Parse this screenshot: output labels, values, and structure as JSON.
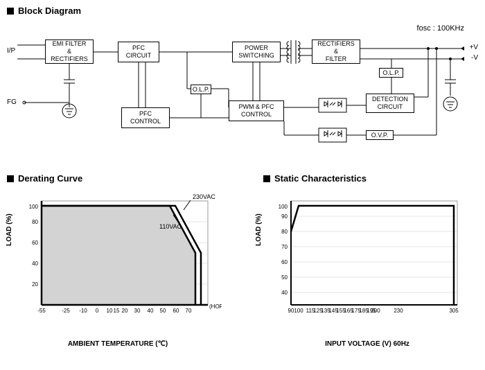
{
  "sections": {
    "block_diagram": "Block Diagram",
    "derating": "Derating Curve",
    "static": "Static Characteristics"
  },
  "fosc": "fosc : 100KHz",
  "blocks": {
    "emi": "EMI FILTER\n&\nRECTIFIERS",
    "pfc_circuit": "PFC\nCIRCUIT",
    "power_sw": "POWER\nSWITCHING",
    "rect_filter": "RECTIFIERS\n&\nFILTER",
    "pfc_control": "PFC\nCONTROL",
    "olp1": "O.L.P.",
    "pwm_pfc": "PWM & PFC\nCONTROL",
    "detection": "DETECTION\nCIRCUIT",
    "olp2": "O.L.P.",
    "ovp": "O.V.P."
  },
  "io_labels": {
    "ip": "I/P",
    "fg": "FG",
    "vp": "+V",
    "vn": "-V"
  },
  "derating_chart": {
    "type": "line",
    "ylabel": "LOAD (%)",
    "xlabel": "AMBIENT TEMPERATURE (℃)",
    "xlim": [
      -55,
      75
    ],
    "ylim": [
      0,
      105
    ],
    "xticks": [
      -55,
      -25,
      -10,
      0,
      10,
      15,
      20,
      30,
      40,
      50,
      60,
      70
    ],
    "yticks": [
      20,
      40,
      60,
      80,
      100
    ],
    "fill_color": "#d3d3d3",
    "line_color": "#000000",
    "line_width": 2,
    "grid_color": "#cccccc",
    "series_230": {
      "label": "230VAC",
      "points": [
        [
          -55,
          100
        ],
        [
          50,
          100
        ],
        [
          70,
          50
        ],
        [
          70,
          0
        ]
      ]
    },
    "series_110": {
      "label": "110VAC",
      "points": [
        [
          -55,
          100
        ],
        [
          45,
          100
        ],
        [
          65,
          50
        ],
        [
          65,
          0
        ]
      ]
    },
    "horizontal_label": "(HORIZONTAL)"
  },
  "static_chart": {
    "type": "line",
    "ylabel": "LOAD (%)",
    "xlabel": "INPUT VOLTAGE (V) 60Hz",
    "xlim": [
      90,
      310
    ],
    "ylim": [
      0,
      105
    ],
    "xticks": [
      90,
      100,
      115,
      125,
      135,
      145,
      155,
      165,
      175,
      185,
      195,
      200,
      230,
      305
    ],
    "yticks": [
      40,
      50,
      60,
      70,
      80,
      90,
      100
    ],
    "line_color": "#000000",
    "line_width": 2,
    "grid_color": "#cccccc",
    "series": {
      "points": [
        [
          90,
          80
        ],
        [
          100,
          100
        ],
        [
          305,
          100
        ],
        [
          305,
          0
        ]
      ]
    }
  }
}
